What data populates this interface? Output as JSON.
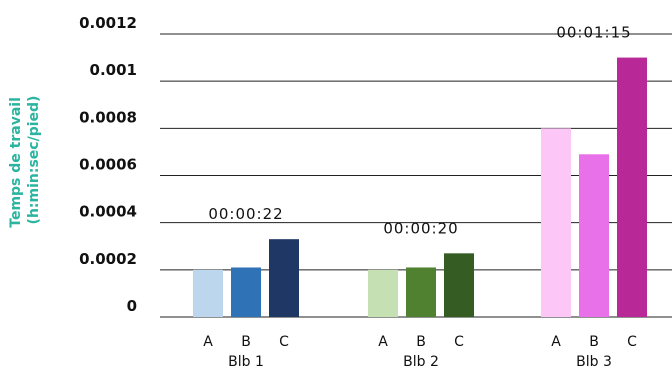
{
  "chart_data": {
    "type": "bar",
    "ylabel": [
      "Temps de travail",
      "(h:min:sec/pied)"
    ],
    "ylim": [
      0,
      0.0012
    ],
    "yticks": [
      "0",
      "0.0002",
      "0.0004",
      "0.0006",
      "0.0008",
      "0.001",
      "0.0012"
    ],
    "grid": true,
    "groups": [
      {
        "name": "Blb 1",
        "annotation": "00:00:22",
        "bars": [
          {
            "label": "A",
            "value": 0.0002,
            "color": "#bcd6ee"
          },
          {
            "label": "B",
            "value": 0.00021,
            "color": "#2f72b6"
          },
          {
            "label": "C",
            "value": 0.00033,
            "color": "#1f3765"
          }
        ]
      },
      {
        "name": "Blb 2",
        "annotation": "00:00:20",
        "bars": [
          {
            "label": "A",
            "value": 0.0002,
            "color": "#c5e1b3"
          },
          {
            "label": "B",
            "value": 0.00021,
            "color": "#4f8131"
          },
          {
            "label": "C",
            "value": 0.00027,
            "color": "#355d23"
          }
        ]
      },
      {
        "name": "Blb 3",
        "annotation": "00:01:15",
        "bars": [
          {
            "label": "A",
            "value": 0.0008,
            "color": "#fcc6f6"
          },
          {
            "label": "B",
            "value": 0.00069,
            "color": "#e870e8"
          },
          {
            "label": "C",
            "value": 0.0011,
            "color": "#b82896"
          }
        ]
      }
    ]
  }
}
